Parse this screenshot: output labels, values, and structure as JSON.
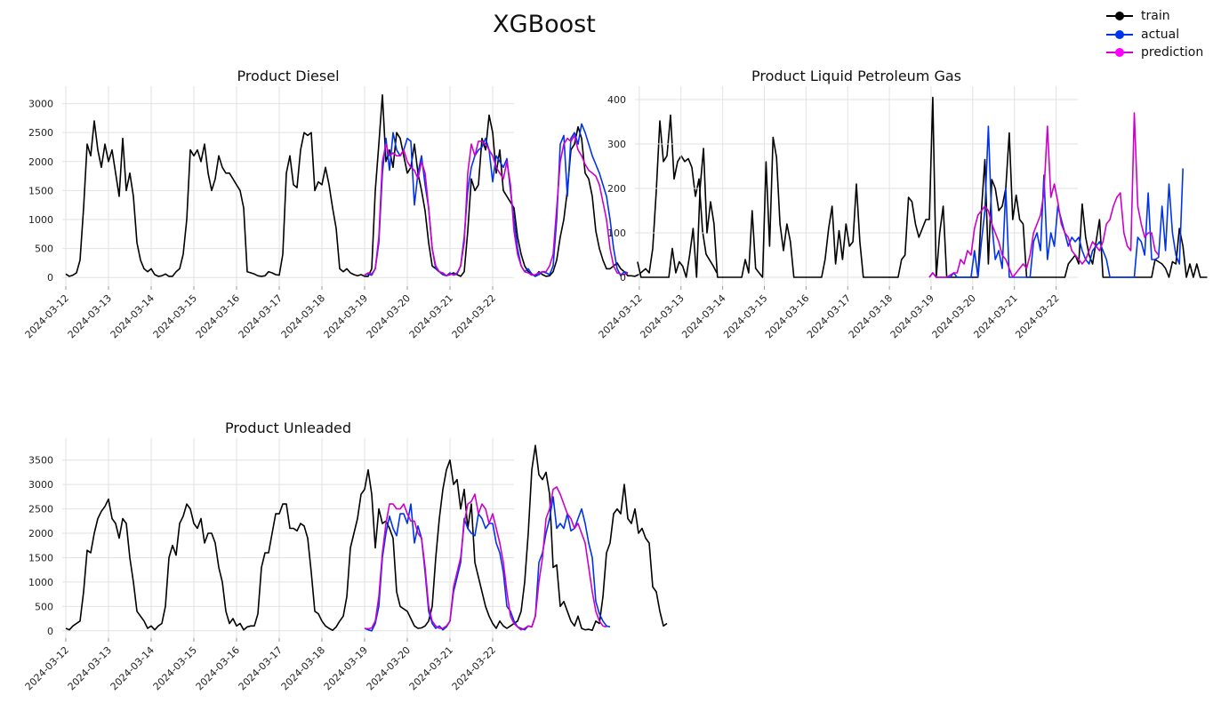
{
  "figure_title": "XGBoost",
  "colors": {
    "train": "#000000",
    "actual": "#0033ee",
    "prediction": "#cc00cc",
    "prediction_marker": "#ff00ff",
    "grid": "#e2e2e2"
  },
  "legend": [
    {
      "label": "train",
      "series": "train"
    },
    {
      "label": "actual",
      "series": "actual"
    },
    {
      "label": "prediction",
      "series": "prediction"
    }
  ],
  "chart_data": [
    {
      "type": "line",
      "title": "Product Diesel",
      "xlabel": "",
      "ylabel": "",
      "x_ticks": [
        "2024-03-12",
        "2024-03-13",
        "2024-03-14",
        "2024-03-15",
        "2024-03-16",
        "2024-03-17",
        "2024-03-18",
        "2024-03-19",
        "2024-03-20",
        "2024-03-21",
        "2024-03-22"
      ],
      "y_ticks": [
        0,
        500,
        1000,
        1500,
        2000,
        2500,
        3000
      ],
      "ylim": [
        -150,
        3300
      ],
      "xlim": [
        "2024-03-11T22:00",
        "2024-03-22T12:00"
      ],
      "grid": true,
      "series": [
        {
          "key": "train",
          "x_start": "2024-03-12T00:00",
          "step_hours": 2,
          "values": [
            60,
            20,
            40,
            80,
            300,
            1200,
            2300,
            2100,
            2700,
            2200,
            1900,
            2300,
            2000,
            2200,
            1800,
            1400,
            2400,
            1500,
            1800,
            1400,
            600,
            300,
            150,
            100,
            150,
            50,
            20,
            30,
            60,
            20,
            20,
            100,
            150,
            400,
            1000,
            2200,
            2100,
            2200,
            2000,
            2300,
            1800,
            1500,
            1700,
            2100,
            1900,
            1800,
            1800,
            1700,
            1600,
            1500,
            1200,
            100,
            80,
            60,
            30,
            20,
            30,
            100,
            80,
            50,
            40,
            400,
            1800,
            2100,
            1600,
            1550,
            2200,
            2500,
            2450,
            2500,
            1500,
            1650,
            1600,
            1900,
            1600,
            1200,
            850,
            150,
            100,
            150,
            80,
            50,
            30,
            50,
            20,
            20,
            150,
            1500,
            2300,
            3150,
            2000,
            2200,
            1900,
            2500,
            2400,
            2100,
            1800,
            1900,
            2300,
            1800,
            1500,
            1150,
            600,
            200,
            150,
            100,
            50,
            30,
            50,
            80,
            50,
            20,
            100,
            800,
            1700,
            1500,
            1600,
            2400,
            2200,
            2800,
            2500,
            1800,
            2200,
            1500,
            1400,
            1300,
            1200,
            700,
            400,
            200,
            100,
            60,
            20,
            100,
            50,
            20,
            30,
            100,
            300,
            700,
            1000,
            1500,
            2200,
            2300,
            2600,
            2400,
            1800,
            1700,
            1400,
            800,
            500,
            300,
            150,
            150,
            200,
            250,
            150,
            100,
            30,
            30,
            20,
            50,
            100,
            150,
            80,
            500,
            1500,
            2700,
            2000,
            2100,
            2800,
            1700,
            2000,
            2100,
            2000,
            2050,
            1900,
            1400,
            1700,
            800,
            400,
            300,
            200,
            80
          ]
        },
        {
          "key": "actual",
          "x_start": "2024-03-19T00:00",
          "step_hours": 2,
          "values": [
            50,
            60,
            40,
            150,
            600,
            1800,
            2400,
            1850,
            2500,
            2200,
            2100,
            2200,
            2400,
            2350,
            1250,
            1800,
            2100,
            1600,
            1200,
            500,
            150,
            100,
            50,
            30,
            80,
            40,
            60,
            200,
            700,
            1500,
            1900,
            2100,
            2200,
            2250,
            2400,
            2200,
            1650,
            2100,
            2000,
            1900,
            2050,
            1500,
            1000,
            500,
            200,
            100,
            150,
            60,
            20,
            50,
            100,
            80,
            50,
            200,
            1000,
            2300,
            2450,
            1400,
            2400,
            2500,
            2300,
            2650,
            2500,
            2300,
            2100,
            1950,
            1800,
            1600,
            1400,
            1000,
            500,
            150,
            30,
            100,
            80
          ]
        },
        {
          "key": "prediction",
          "x_start": "2024-03-19T00:00",
          "step_hours": 2,
          "values": [
            40,
            80,
            60,
            150,
            700,
            2000,
            2300,
            2100,
            2150,
            2100,
            2100,
            2200,
            2000,
            1900,
            1850,
            1700,
            2000,
            1800,
            1200,
            500,
            200,
            100,
            80,
            30,
            60,
            50,
            80,
            200,
            600,
            1800,
            2300,
            2100,
            2350,
            2350,
            2300,
            2200,
            2100,
            1900,
            1800,
            1700,
            2000,
            1600,
            800,
            400,
            200,
            100,
            80,
            40,
            50,
            80,
            100,
            100,
            200,
            400,
            1200,
            2000,
            2300,
            2400,
            2350,
            2450,
            2200,
            2100,
            1950,
            1850,
            1800,
            1750,
            1600,
            1300,
            1000,
            500,
            200,
            80,
            60,
            50,
            80
          ]
        }
      ]
    },
    {
      "type": "line",
      "title": "Product Liquid Petroleum Gas",
      "xlabel": "",
      "ylabel": "",
      "x_ticks": [
        "2024-03-12",
        "2024-03-13",
        "2024-03-14",
        "2024-03-15",
        "2024-03-16",
        "2024-03-17",
        "2024-03-18",
        "2024-03-19",
        "2024-03-20",
        "2024-03-21",
        "2024-03-22"
      ],
      "y_ticks": [
        0,
        100,
        200,
        300,
        400
      ],
      "ylim": [
        -20,
        430
      ],
      "xlim": [
        "2024-03-11T21:30",
        "2024-03-22T12:30"
      ],
      "grid": true,
      "series": [
        {
          "key": "train",
          "x_start": "2024-03-11T23:00",
          "step_hours": 2,
          "values": [
            35,
            0,
            0,
            0,
            0,
            0,
            0,
            0,
            0,
            0,
            65,
            10,
            35,
            25,
            0,
            50,
            110,
            0,
            200,
            290,
            100,
            170,
            120,
            0,
            0,
            0,
            0,
            0,
            0,
            0,
            0,
            40,
            10,
            150,
            20,
            10,
            0,
            260,
            70,
            315,
            270,
            120,
            60,
            120,
            80,
            0,
            0,
            0,
            0,
            0,
            0,
            0,
            0,
            0,
            40,
            110,
            160,
            30,
            105,
            40,
            120,
            70,
            80,
            210,
            80,
            0,
            0,
            0,
            0,
            0,
            0,
            0,
            0,
            0,
            0,
            0,
            40,
            50,
            180,
            170,
            120,
            90,
            110,
            130,
            130,
            405,
            0,
            100,
            160,
            0,
            0,
            0,
            0,
            0,
            0,
            0,
            0,
            0,
            0,
            150,
            265,
            30,
            220,
            200,
            150,
            160,
            200,
            325,
            130,
            185,
            130,
            120,
            0,
            0,
            0,
            0,
            0,
            0,
            0,
            0,
            0,
            0,
            0,
            0,
            30,
            40,
            50,
            30,
            165,
            90,
            50,
            30,
            80,
            130,
            0,
            0,
            0,
            0,
            0,
            0,
            0,
            0,
            0,
            0,
            0,
            0,
            0,
            0,
            0,
            40,
            35,
            30,
            20,
            0,
            35,
            30,
            110,
            70,
            0,
            30,
            0,
            30,
            0,
            0,
            0
          ]
        },
        {
          "key": "actual",
          "x_start": "2024-03-18T23:00",
          "step_hours": 2,
          "values": [
            0,
            10,
            0,
            0,
            0,
            0,
            0,
            10,
            0,
            0,
            0,
            0,
            0,
            60,
            0,
            80,
            150,
            340,
            120,
            40,
            60,
            20,
            200,
            0,
            0,
            0,
            0,
            0,
            0,
            0,
            80,
            100,
            60,
            230,
            40,
            100,
            70,
            160,
            130,
            100,
            70,
            90,
            80,
            90,
            60,
            40,
            30,
            60,
            70,
            80,
            60,
            40,
            0,
            0,
            0,
            0,
            0,
            0,
            0,
            0,
            90,
            80,
            50,
            190,
            40,
            40,
            45,
            160,
            60,
            210,
            100,
            50,
            30,
            245
          ]
        },
        {
          "key": "prediction",
          "x_start": "2024-03-18T23:00",
          "step_hours": 2,
          "values": [
            0,
            10,
            0,
            0,
            0,
            0,
            5,
            10,
            10,
            40,
            30,
            60,
            50,
            110,
            140,
            150,
            160,
            150,
            120,
            100,
            80,
            50,
            40,
            20,
            0,
            10,
            20,
            30,
            20,
            50,
            100,
            120,
            140,
            190,
            340,
            180,
            210,
            170,
            120,
            100,
            90,
            60,
            50,
            40,
            30,
            40,
            60,
            80,
            70,
            60,
            80,
            120,
            130,
            160,
            180,
            190,
            100,
            70,
            60,
            370,
            160,
            120,
            90,
            100,
            100,
            60,
            50
          ]
        }
      ]
    },
    {
      "type": "line",
      "title": "Product Unleaded",
      "xlabel": "",
      "ylabel": "",
      "x_ticks": [
        "2024-03-12",
        "2024-03-13",
        "2024-03-14",
        "2024-03-15",
        "2024-03-16",
        "2024-03-17",
        "2024-03-18",
        "2024-03-19",
        "2024-03-20",
        "2024-03-21",
        "2024-03-22"
      ],
      "y_ticks": [
        0,
        500,
        1000,
        1500,
        2000,
        2500,
        3000,
        3500
      ],
      "ylim": [
        -150,
        3950
      ],
      "xlim": [
        "2024-03-11T22:00",
        "2024-03-22T12:00"
      ],
      "grid": true,
      "series": [
        {
          "key": "train",
          "x_start": "2024-03-12T00:00",
          "step_hours": 2,
          "values": [
            50,
            20,
            100,
            150,
            200,
            800,
            1650,
            1600,
            2000,
            2300,
            2450,
            2550,
            2700,
            2300,
            2200,
            1900,
            2300,
            2200,
            1500,
            1000,
            400,
            300,
            200,
            50,
            100,
            20,
            100,
            150,
            500,
            1500,
            1750,
            1550,
            2200,
            2350,
            2600,
            2500,
            2200,
            2100,
            2300,
            1800,
            2000,
            2000,
            1800,
            1300,
            1000,
            400,
            150,
            250,
            100,
            150,
            20,
            80,
            100,
            100,
            350,
            1300,
            1600,
            1600,
            2000,
            2400,
            2400,
            2600,
            2600,
            2100,
            2100,
            2050,
            2200,
            2150,
            1900,
            1200,
            400,
            350,
            200,
            100,
            50,
            10,
            80,
            200,
            300,
            700,
            1700,
            2000,
            2300,
            2800,
            2900,
            3300,
            2800,
            1700,
            2500,
            2200,
            2250,
            2100,
            1900,
            800,
            500,
            450,
            400,
            250,
            100,
            50,
            60,
            100,
            200,
            500,
            1500,
            2300,
            2900,
            3300,
            3500,
            3000,
            3100,
            2500,
            2900,
            2100,
            2600,
            1400,
            1100,
            800,
            500,
            300,
            150,
            50,
            200,
            100,
            50,
            100,
            150,
            200,
            400,
            1000,
            2000,
            3300,
            3800,
            3200,
            3100,
            3250,
            2800,
            1300,
            1350,
            500,
            600,
            400,
            200,
            100,
            300,
            50,
            20,
            30,
            10,
            200,
            150,
            700,
            1600,
            1800,
            2400,
            2500,
            2400,
            3000,
            2300,
            2200,
            2500,
            2000,
            2100,
            1900,
            1800,
            900,
            800,
            400,
            100,
            150
          ]
        },
        {
          "key": "actual",
          "x_start": "2024-03-19T00:00",
          "step_hours": 2,
          "values": [
            50,
            20,
            0,
            150,
            500,
            1500,
            2000,
            2350,
            2100,
            1950,
            2400,
            2400,
            2200,
            2600,
            1800,
            2150,
            1900,
            1200,
            400,
            150,
            50,
            100,
            20,
            80,
            200,
            800,
            1100,
            1400,
            2300,
            2100,
            2000,
            1950,
            2400,
            2300,
            2100,
            2200,
            2200,
            1800,
            1600,
            1200,
            500,
            400,
            200,
            80,
            50,
            20,
            100,
            80,
            300,
            1400,
            1600,
            2000,
            2300,
            2750,
            2100,
            2200,
            2100,
            2400,
            2050,
            2100,
            2300,
            2500,
            2200,
            1800,
            1500,
            600,
            350,
            200,
            100,
            80
          ]
        },
        {
          "key": "prediction",
          "x_start": "2024-03-19T00:00",
          "step_hours": 2,
          "values": [
            50,
            40,
            60,
            200,
            700,
            1600,
            2200,
            2600,
            2600,
            2500,
            2500,
            2600,
            2400,
            2250,
            2250,
            2000,
            1900,
            1300,
            500,
            200,
            100,
            50,
            50,
            100,
            200,
            900,
            1200,
            1500,
            2200,
            2600,
            2650,
            2800,
            2400,
            2600,
            2500,
            2200,
            2400,
            2100,
            1800,
            1400,
            800,
            300,
            150,
            80,
            20,
            50,
            100,
            80,
            300,
            1000,
            1500,
            2300,
            2500,
            2900,
            2950,
            2800,
            2600,
            2400,
            2300,
            2100,
            2200,
            2000,
            1800,
            1300,
            800,
            400,
            200,
            100,
            80
          ]
        }
      ]
    }
  ]
}
